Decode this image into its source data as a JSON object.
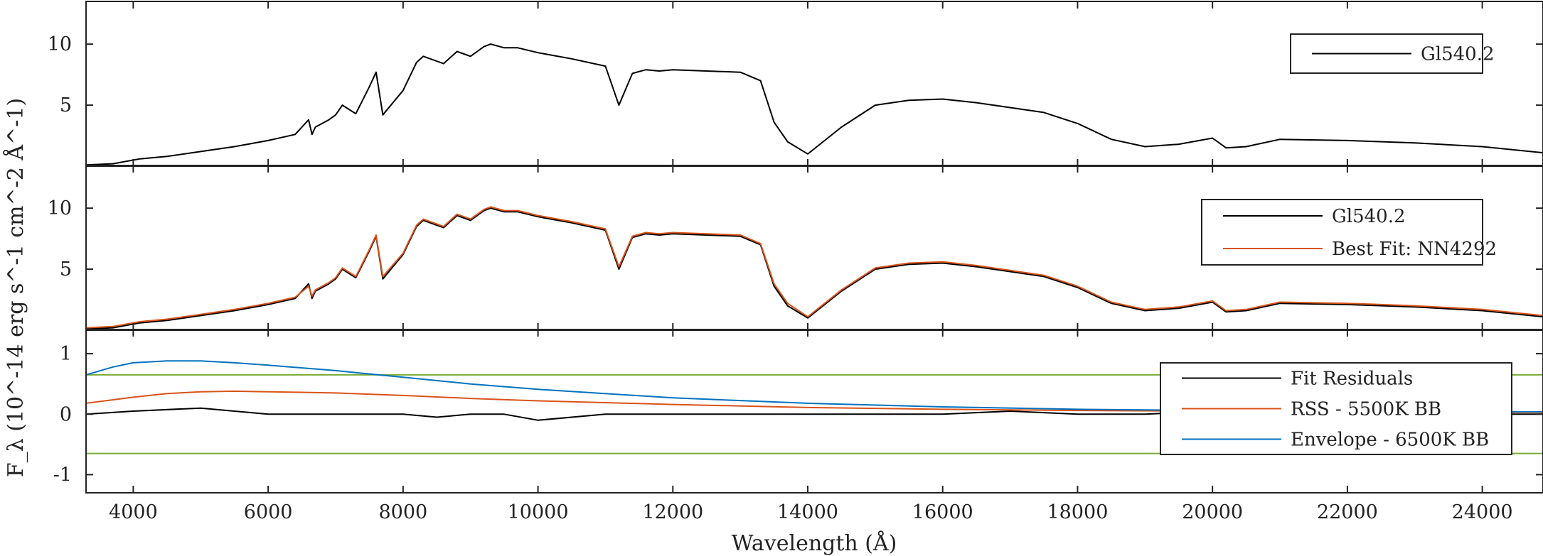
{
  "chart_data": [
    {
      "type": "line",
      "panel": "top",
      "xlim": [
        3300,
        24900
      ],
      "ylim": [
        0,
        13.5
      ],
      "yticks": [
        5,
        10
      ],
      "grid": false,
      "legend_position": "top-right",
      "series": [
        {
          "name": "Gl540.2",
          "color": "#000000",
          "x": [
            3300,
            3700,
            3900,
            4100,
            4500,
            5000,
            5500,
            6000,
            6400,
            6600,
            6650,
            6700,
            6900,
            7000,
            7100,
            7300,
            7500,
            7600,
            7700,
            8000,
            8200,
            8300,
            8600,
            8800,
            9000,
            9200,
            9300,
            9500,
            9700,
            10000,
            10500,
            11000,
            11200,
            11400,
            11600,
            11800,
            12000,
            12500,
            13000,
            13300,
            13500,
            13700,
            14000,
            14500,
            15000,
            15500,
            16000,
            16500,
            17000,
            17500,
            18000,
            18500,
            19000,
            19500,
            20000,
            20200,
            20500,
            21000,
            22000,
            23000,
            24000,
            24900
          ],
          "y": [
            0.1,
            0.2,
            0.4,
            0.6,
            0.8,
            1.2,
            1.6,
            2.1,
            2.6,
            3.8,
            2.6,
            3.2,
            3.8,
            4.2,
            5.0,
            4.3,
            6.5,
            7.7,
            4.2,
            6.2,
            8.5,
            9.0,
            8.4,
            9.4,
            9.0,
            9.8,
            10.0,
            9.7,
            9.7,
            9.3,
            8.8,
            8.2,
            5.0,
            7.6,
            7.9,
            7.8,
            7.9,
            7.8,
            7.7,
            7.0,
            3.6,
            2.0,
            1.0,
            3.2,
            5.0,
            5.4,
            5.5,
            5.2,
            4.8,
            4.4,
            3.5,
            2.2,
            1.6,
            1.8,
            2.3,
            1.5,
            1.6,
            2.2,
            2.1,
            1.9,
            1.6,
            1.1
          ]
        }
      ]
    },
    {
      "type": "line",
      "panel": "middle",
      "xlim": [
        3300,
        24900
      ],
      "ylim": [
        0,
        13.5
      ],
      "yticks": [
        5,
        10
      ],
      "grid": false,
      "legend_position": "top-right",
      "series": [
        {
          "name": "Gl540.2",
          "color": "#000000",
          "x": [
            3300,
            3700,
            3900,
            4100,
            4500,
            5000,
            5500,
            6000,
            6400,
            6600,
            6650,
            6700,
            6900,
            7000,
            7100,
            7300,
            7500,
            7600,
            7700,
            8000,
            8200,
            8300,
            8600,
            8800,
            9000,
            9200,
            9300,
            9500,
            9700,
            10000,
            10500,
            11000,
            11200,
            11400,
            11600,
            11800,
            12000,
            12500,
            13000,
            13300,
            13500,
            13700,
            14000,
            14500,
            15000,
            15500,
            16000,
            16500,
            17000,
            17500,
            18000,
            18500,
            19000,
            19500,
            20000,
            20200,
            20500,
            21000,
            22000,
            23000,
            24000,
            24900
          ],
          "y": [
            0.1,
            0.2,
            0.4,
            0.6,
            0.8,
            1.2,
            1.6,
            2.1,
            2.6,
            3.8,
            2.6,
            3.2,
            3.8,
            4.2,
            5.0,
            4.3,
            6.5,
            7.7,
            4.2,
            6.2,
            8.5,
            9.0,
            8.4,
            9.4,
            9.0,
            9.8,
            10.0,
            9.7,
            9.7,
            9.3,
            8.8,
            8.2,
            5.0,
            7.6,
            7.9,
            7.8,
            7.9,
            7.8,
            7.7,
            7.0,
            3.6,
            2.0,
            1.0,
            3.2,
            5.0,
            5.4,
            5.5,
            5.2,
            4.8,
            4.4,
            3.5,
            2.2,
            1.6,
            1.8,
            2.3,
            1.5,
            1.6,
            2.2,
            2.1,
            1.9,
            1.6,
            1.1
          ]
        },
        {
          "name": "Best Fit: NN4292",
          "color": "#d95319",
          "x": [
            3300,
            3700,
            3900,
            4100,
            4500,
            5000,
            5500,
            6000,
            6400,
            6600,
            6650,
            6700,
            6900,
            7000,
            7100,
            7300,
            7500,
            7600,
            7700,
            8000,
            8200,
            8300,
            8600,
            8800,
            9000,
            9200,
            9300,
            9500,
            9700,
            10000,
            10500,
            11000,
            11200,
            11400,
            11600,
            11800,
            12000,
            12500,
            13000,
            13300,
            13500,
            13700,
            14000,
            14500,
            15000,
            15500,
            16000,
            16500,
            17000,
            17500,
            18000,
            18500,
            19000,
            19500,
            20000,
            20200,
            20500,
            21000,
            22000,
            23000,
            24000,
            24900
          ],
          "y": [
            0.2,
            0.3,
            0.5,
            0.7,
            0.9,
            1.3,
            1.7,
            2.2,
            2.7,
            3.6,
            2.8,
            3.3,
            3.9,
            4.3,
            5.1,
            4.4,
            6.6,
            7.8,
            4.4,
            6.3,
            8.6,
            9.1,
            8.5,
            9.5,
            9.1,
            9.9,
            10.1,
            9.8,
            9.8,
            9.4,
            8.9,
            8.3,
            5.2,
            7.7,
            8.0,
            7.9,
            8.0,
            7.9,
            7.8,
            7.1,
            3.8,
            2.2,
            1.1,
            3.3,
            5.1,
            5.5,
            5.6,
            5.3,
            4.9,
            4.5,
            3.6,
            2.3,
            1.7,
            1.9,
            2.4,
            1.6,
            1.7,
            2.3,
            2.2,
            2.0,
            1.7,
            1.2
          ]
        }
      ]
    },
    {
      "type": "line",
      "panel": "bottom",
      "xlim": [
        3300,
        24900
      ],
      "ylim": [
        -1.3,
        1.4
      ],
      "yticks": [
        -1,
        0,
        1
      ],
      "xticks": [
        4000,
        6000,
        8000,
        10000,
        12000,
        14000,
        16000,
        18000,
        20000,
        22000,
        24000
      ],
      "xlabel": "Wavelength (Å)",
      "ylabel": "F_λ (10^-14 erg s^-1 cm^-2 Å^-1)",
      "grid": false,
      "legend_position": "right",
      "threshold_lines": {
        "values": [
          0.65,
          -0.65
        ],
        "color": "#77ac30"
      },
      "series": [
        {
          "name": "Fit Residuals",
          "color": "#000000",
          "x": [
            3300,
            4000,
            5000,
            6000,
            7000,
            8000,
            8500,
            9000,
            9500,
            10000,
            11000,
            12000,
            13000,
            14000,
            15000,
            16000,
            17000,
            18000,
            19000,
            20000,
            21000,
            22000,
            23000,
            24000,
            24900
          ],
          "y": [
            0.0,
            0.05,
            0.1,
            0.0,
            0.0,
            0.0,
            -0.05,
            0.0,
            0.0,
            -0.1,
            0.0,
            0.0,
            0.0,
            0.0,
            0.0,
            0.0,
            0.05,
            0.0,
            0.0,
            0.05,
            0.0,
            0.0,
            0.0,
            0.0,
            0.0
          ]
        },
        {
          "name": "RSS - 5500K BB",
          "color": "#d95319",
          "x": [
            3300,
            4000,
            4500,
            5000,
            5500,
            6000,
            7000,
            8000,
            9000,
            10000,
            12000,
            14000,
            16000,
            18000,
            20000,
            22000,
            24000,
            24900
          ],
          "y": [
            0.18,
            0.28,
            0.34,
            0.37,
            0.38,
            0.37,
            0.35,
            0.31,
            0.26,
            0.22,
            0.16,
            0.11,
            0.08,
            0.06,
            0.05,
            0.04,
            0.03,
            0.03
          ]
        },
        {
          "name": "Envelope - 6500K BB",
          "color": "#0072bd",
          "x": [
            3300,
            3700,
            4000,
            4500,
            5000,
            5500,
            6000,
            7000,
            8000,
            9000,
            10000,
            12000,
            14000,
            16000,
            18000,
            20000,
            22000,
            24000,
            24900
          ],
          "y": [
            0.65,
            0.78,
            0.85,
            0.88,
            0.88,
            0.85,
            0.81,
            0.72,
            0.61,
            0.5,
            0.41,
            0.27,
            0.18,
            0.12,
            0.08,
            0.06,
            0.05,
            0.04,
            0.04
          ]
        }
      ]
    }
  ]
}
